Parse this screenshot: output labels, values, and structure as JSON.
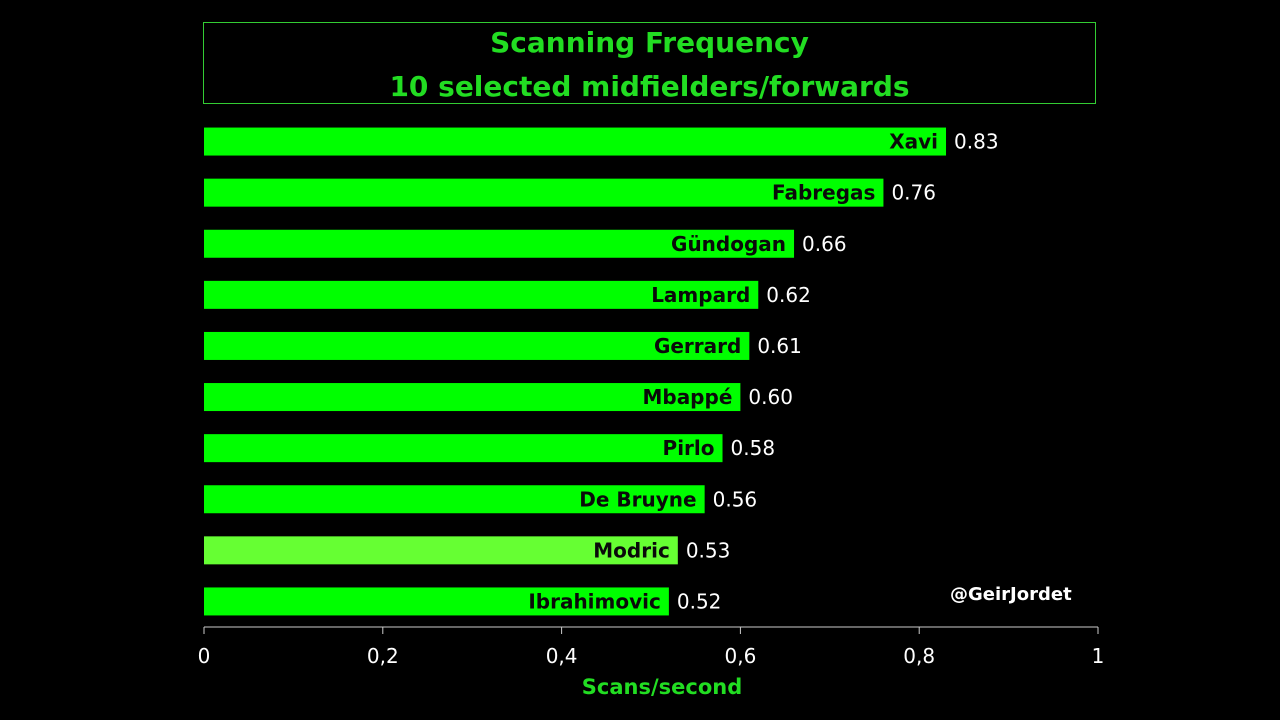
{
  "chart_data": {
    "type": "bar",
    "orientation": "horizontal",
    "title": [
      "Scanning Frequency",
      "10 selected midfielders/forwards"
    ],
    "xlabel": "Scans/second",
    "xlim": [
      0,
      1
    ],
    "xticks": [
      0,
      0.2,
      0.4,
      0.6,
      0.8,
      1
    ],
    "xtick_labels": [
      "0",
      "0,2",
      "0,4",
      "0,6",
      "0,8",
      "1"
    ],
    "categories": [
      "Xavi",
      "Fabregas",
      "Gündogan",
      "Lampard",
      "Gerrard",
      "Mbappé",
      "Pirlo",
      "De Bruyne",
      "Modric",
      "Ibrahimovic"
    ],
    "values": [
      0.83,
      0.76,
      0.66,
      0.62,
      0.61,
      0.6,
      0.58,
      0.56,
      0.53,
      0.52
    ],
    "value_labels": [
      "0.83",
      "0.76",
      "0.66",
      "0.62",
      "0.61",
      "0.60",
      "0.58",
      "0.56",
      "0.53",
      "0.52"
    ],
    "bar_colors": [
      "#00ff00",
      "#00ff00",
      "#00ff00",
      "#00ff00",
      "#00ff00",
      "#00ff00",
      "#00ff00",
      "#00ff00",
      "#66ff33",
      "#00ff00"
    ],
    "grid": false,
    "legend": "none"
  },
  "colors": {
    "background": "#000000",
    "title": "#22dd22",
    "bar": "#00ff00",
    "axis": "#cccccc"
  },
  "watermark": "@GeirJordet"
}
